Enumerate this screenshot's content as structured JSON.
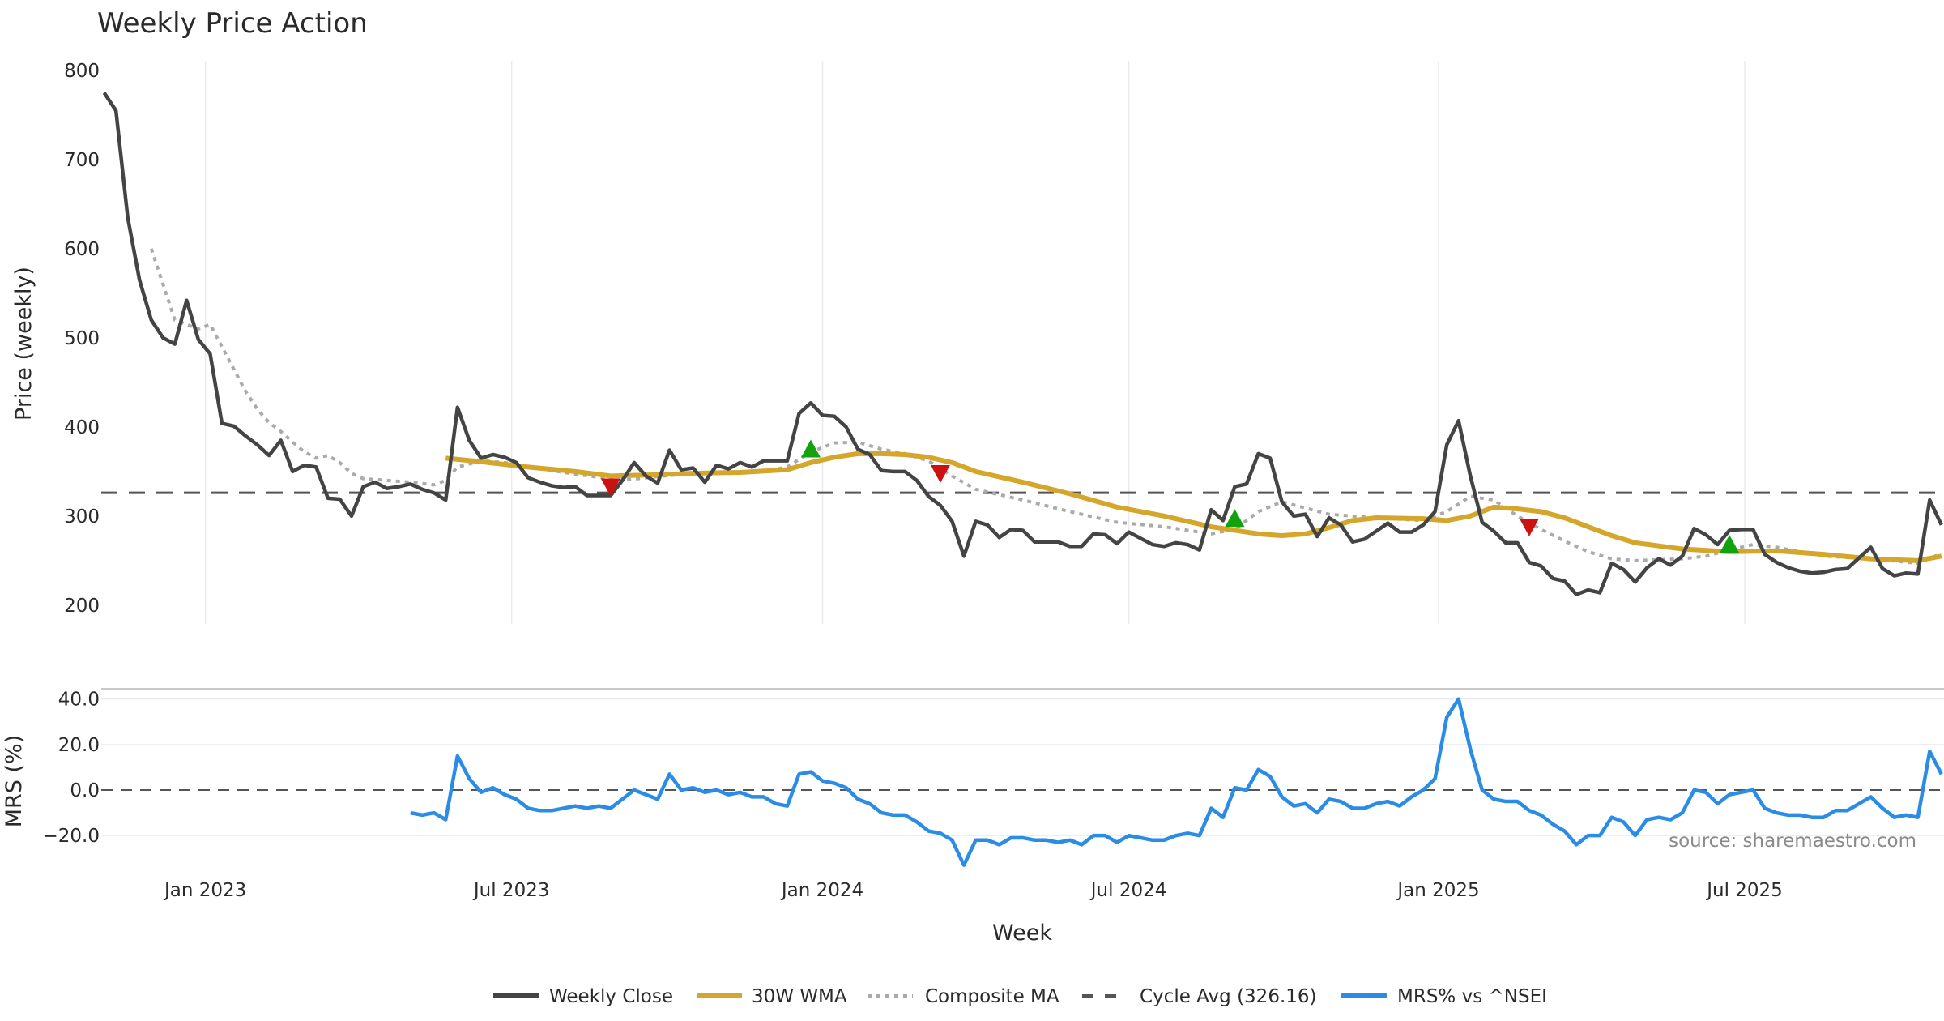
{
  "chart_data": {
    "type": "line",
    "title": "Weekly Price Action",
    "xlabel": "Week",
    "source": "source: sharemaestro.com",
    "x_unit": "week index (weekly bars, ~Nov 2022 to Oct 2025)",
    "x_ticks": [
      {
        "label": "Jan 2023",
        "week": 8.6
      },
      {
        "label": "Jul 2023",
        "week": 34.6
      },
      {
        "label": "Jan 2024",
        "week": 61
      },
      {
        "label": "Jul 2024",
        "week": 87
      },
      {
        "label": "Jan 2025",
        "week": 113.3
      },
      {
        "label": "Jul 2025",
        "week": 139.3
      }
    ],
    "price_panel": {
      "ylabel": "Price (weekly)",
      "ylim": [
        180,
        815
      ],
      "yticks": [
        200,
        300,
        400,
        500,
        600,
        700,
        800
      ],
      "weekly_close": [
        775,
        755,
        635,
        565,
        520,
        500,
        493,
        542,
        498,
        482,
        404,
        401,
        390,
        380,
        368,
        385,
        350,
        357,
        355,
        320,
        319,
        300,
        333,
        338,
        331,
        333,
        336,
        330,
        326,
        318,
        422,
        385,
        365,
        369,
        366,
        360,
        343,
        338,
        334,
        332,
        333,
        323,
        323,
        323,
        340,
        360,
        345,
        337,
        374,
        352,
        354,
        338,
        357,
        353,
        360,
        355,
        362,
        362,
        362,
        415,
        427,
        413,
        412,
        400,
        375,
        369,
        351,
        350,
        350,
        340,
        322,
        312,
        294,
        255,
        294,
        290,
        276,
        285,
        284,
        271,
        271,
        271,
        266,
        266,
        280,
        279,
        269,
        282,
        275,
        268,
        266,
        270,
        268,
        262,
        307,
        295,
        333,
        336,
        370,
        365,
        316,
        300,
        302,
        277,
        298,
        290,
        271,
        274,
        283,
        292,
        282,
        282,
        290,
        305,
        380,
        407,
        345,
        293,
        283,
        270,
        270,
        248,
        244,
        230,
        227,
        212,
        217,
        214,
        247,
        240,
        226,
        242,
        252,
        245,
        255,
        286,
        279,
        268,
        284,
        285,
        285,
        257,
        248,
        242,
        238,
        236,
        237,
        240,
        241,
        253,
        265,
        241,
        233,
        236,
        235,
        318,
        290
      ],
      "wma_30w": [
        [
          29,
          365
        ],
        [
          32,
          361
        ],
        [
          36,
          355
        ],
        [
          40,
          350
        ],
        [
          43,
          345
        ],
        [
          46,
          346
        ],
        [
          50,
          348
        ],
        [
          54,
          349
        ],
        [
          58,
          352
        ],
        [
          60,
          360
        ],
        [
          62,
          366
        ],
        [
          64,
          370
        ],
        [
          66,
          370
        ],
        [
          68,
          369
        ],
        [
          70,
          366
        ],
        [
          72,
          360
        ],
        [
          74,
          350
        ],
        [
          78,
          338
        ],
        [
          82,
          325
        ],
        [
          86,
          310
        ],
        [
          90,
          300
        ],
        [
          94,
          288
        ],
        [
          98,
          280
        ],
        [
          100,
          278
        ],
        [
          102,
          280
        ],
        [
          104,
          287
        ],
        [
          106,
          295
        ],
        [
          108,
          298
        ],
        [
          112,
          297
        ],
        [
          114,
          295
        ],
        [
          116,
          300
        ],
        [
          118,
          310
        ],
        [
          120,
          308
        ],
        [
          122,
          305
        ],
        [
          124,
          298
        ],
        [
          126,
          288
        ],
        [
          128,
          278
        ],
        [
          130,
          270
        ],
        [
          134,
          263
        ],
        [
          138,
          260
        ],
        [
          142,
          261
        ],
        [
          146,
          257
        ],
        [
          150,
          252
        ],
        [
          154,
          250
        ],
        [
          156,
          255
        ]
      ],
      "composite_ma": [
        [
          4,
          600
        ],
        [
          5,
          560
        ],
        [
          6,
          520
        ],
        [
          7,
          515
        ],
        [
          8,
          510
        ],
        [
          9,
          515
        ],
        [
          10,
          490
        ],
        [
          11,
          465
        ],
        [
          12,
          440
        ],
        [
          13,
          420
        ],
        [
          14,
          405
        ],
        [
          15,
          395
        ],
        [
          16,
          383
        ],
        [
          17,
          372
        ],
        [
          18,
          365
        ],
        [
          19,
          368
        ],
        [
          20,
          360
        ],
        [
          21,
          348
        ],
        [
          22,
          342
        ],
        [
          24,
          340
        ],
        [
          26,
          338
        ],
        [
          28,
          335
        ],
        [
          29,
          340
        ],
        [
          30,
          355
        ],
        [
          32,
          362
        ],
        [
          34,
          360
        ],
        [
          36,
          355
        ],
        [
          40,
          347
        ],
        [
          44,
          340
        ],
        [
          46,
          343
        ],
        [
          50,
          348
        ],
        [
          56,
          350
        ],
        [
          58,
          355
        ],
        [
          60,
          372
        ],
        [
          62,
          382
        ],
        [
          64,
          383
        ],
        [
          66,
          375
        ],
        [
          68,
          370
        ],
        [
          70,
          362
        ],
        [
          72,
          345
        ],
        [
          74,
          330
        ],
        [
          78,
          318
        ],
        [
          82,
          305
        ],
        [
          86,
          293
        ],
        [
          90,
          288
        ],
        [
          94,
          280
        ],
        [
          96,
          285
        ],
        [
          98,
          305
        ],
        [
          100,
          316
        ],
        [
          104,
          302
        ],
        [
          108,
          298
        ],
        [
          112,
          295
        ],
        [
          114,
          305
        ],
        [
          116,
          322
        ],
        [
          118,
          318
        ],
        [
          120,
          300
        ],
        [
          122,
          285
        ],
        [
          124,
          272
        ],
        [
          126,
          260
        ],
        [
          128,
          252
        ],
        [
          130,
          250
        ],
        [
          134,
          252
        ],
        [
          136,
          255
        ],
        [
          138,
          262
        ],
        [
          140,
          268
        ],
        [
          142,
          265
        ],
        [
          146,
          255
        ],
        [
          150,
          252
        ],
        [
          154,
          247
        ],
        [
          156,
          258
        ]
      ],
      "cycle_avg": 326.16,
      "buy_signals": [
        [
          60,
          374
        ],
        [
          96,
          296
        ],
        [
          138,
          267
        ]
      ],
      "sell_signals": [
        [
          43,
          334
        ],
        [
          71,
          349
        ],
        [
          121,
          289
        ]
      ]
    },
    "mrs_panel": {
      "ylabel": "MRS (%)",
      "ylim": [
        -36,
        44
      ],
      "yticks": [
        40,
        20,
        0,
        -20
      ],
      "ytick_labels": [
        "40.0",
        "20.0",
        "0.0",
        "−20.0"
      ],
      "start_week": 26,
      "values": [
        -10,
        -11,
        -10,
        -13,
        15,
        5,
        -1,
        1,
        -2,
        -4,
        -8,
        -9,
        -9,
        -8,
        -7,
        -8,
        -7,
        -8,
        -4,
        0,
        -2,
        -4,
        7,
        0,
        1,
        -1,
        0,
        -2,
        -1,
        -3,
        -3,
        -6,
        -7,
        7,
        8,
        4,
        3,
        1,
        -4,
        -6,
        -10,
        -11,
        -11,
        -14,
        -18,
        -19,
        -22,
        -33,
        -22,
        -22,
        -24,
        -21,
        -21,
        -22,
        -22,
        -23,
        -22,
        -24,
        -20,
        -20,
        -23,
        -20,
        -21,
        -22,
        -22,
        -20,
        -19,
        -20,
        -8,
        -12,
        1,
        0,
        9,
        6,
        -3,
        -7,
        -6,
        -10,
        -4,
        -5,
        -8,
        -8,
        -6,
        -5,
        -7,
        -3,
        0,
        5,
        32,
        40,
        18,
        0,
        -4,
        -5,
        -5,
        -9,
        -11,
        -15,
        -18,
        -24,
        -20,
        -20,
        -12,
        -14,
        -20,
        -13,
        -12,
        -13,
        -10,
        0,
        -1,
        -6,
        -2,
        -1,
        0,
        -8,
        -10,
        -11,
        -11,
        -12,
        -12,
        -9,
        -9,
        -6,
        -3,
        -8,
        -12,
        -11,
        -12,
        17,
        7
      ]
    },
    "legend": {
      "placement": "bottom-center",
      "items": [
        {
          "label": "Weekly Close",
          "color": "#444444",
          "style": "solid"
        },
        {
          "label": "30W WMA",
          "color": "#D4A72C",
          "style": "solid"
        },
        {
          "label": "Composite MA",
          "color": "#AAAAAA",
          "style": "dotted"
        },
        {
          "label": "Cycle Avg (326.16)",
          "color": "#555555",
          "style": "dashed"
        },
        {
          "label": "MRS% vs ^NSEI",
          "color": "#2B8CE6",
          "style": "solid"
        }
      ]
    },
    "colors": {
      "buy": "#13A10E",
      "sell": "#CC1111",
      "grid": "#EBEBEB"
    }
  }
}
